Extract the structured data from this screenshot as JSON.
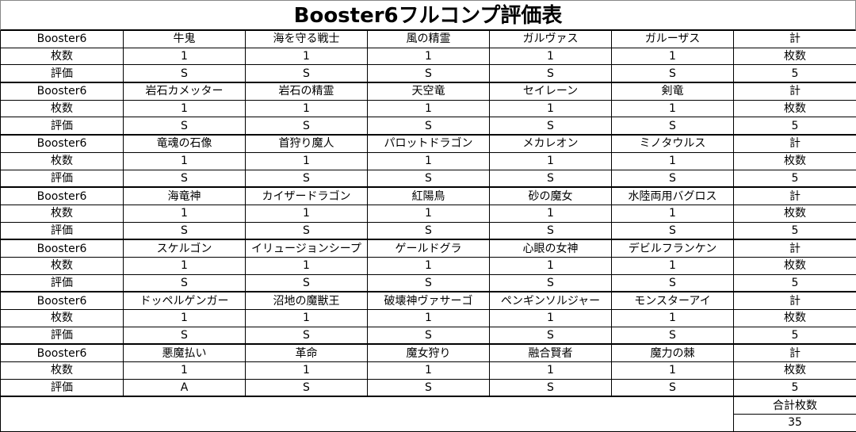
{
  "title": "Booster6フルコンプ評価表",
  "labels": {
    "booster": "Booster6",
    "count": "枚数",
    "rating": "評価",
    "total": "計",
    "grand_total_label": "合計枚数"
  },
  "groups": [
    {
      "cards": [
        "牛鬼",
        "海を守る戦士",
        "風の精霊",
        "ガルヴァス",
        "ガルーザス"
      ],
      "counts": [
        "1",
        "1",
        "1",
        "1",
        "1"
      ],
      "ratings": [
        "S",
        "S",
        "S",
        "S",
        "S"
      ],
      "total": "5"
    },
    {
      "cards": [
        "岩石カメッター",
        "岩石の精霊",
        "天空竜",
        "セイレーン",
        "剣竜"
      ],
      "counts": [
        "1",
        "1",
        "1",
        "1",
        "1"
      ],
      "ratings": [
        "S",
        "S",
        "S",
        "S",
        "S"
      ],
      "total": "5"
    },
    {
      "cards": [
        "竜魂の石像",
        "首狩り魔人",
        "パロットドラゴン",
        "メカレオン",
        "ミノタウルス"
      ],
      "counts": [
        "1",
        "1",
        "1",
        "1",
        "1"
      ],
      "ratings": [
        "S",
        "S",
        "S",
        "S",
        "S"
      ],
      "total": "5"
    },
    {
      "cards": [
        "海竜神",
        "カイザードラゴン",
        "紅陽鳥",
        "砂の魔女",
        "水陸両用バグロス"
      ],
      "counts": [
        "1",
        "1",
        "1",
        "1",
        "1"
      ],
      "ratings": [
        "S",
        "S",
        "S",
        "S",
        "S"
      ],
      "total": "5"
    },
    {
      "cards": [
        "スケルゴン",
        "イリュージョンシープ",
        "ゲールドグラ",
        "心眼の女神",
        "デビルフランケン"
      ],
      "counts": [
        "1",
        "1",
        "1",
        "1",
        "1"
      ],
      "ratings": [
        "S",
        "S",
        "S",
        "S",
        "S"
      ],
      "total": "5"
    },
    {
      "cards": [
        "ドッペルゲンガー",
        "沼地の魔獣王",
        "破壊神ヴァサーゴ",
        "ペンギンソルジャー",
        "モンスターアイ"
      ],
      "counts": [
        "1",
        "1",
        "1",
        "1",
        "1"
      ],
      "ratings": [
        "S",
        "S",
        "S",
        "S",
        "S"
      ],
      "total": "5"
    },
    {
      "cards": [
        "悪魔払い",
        "革命",
        "魔女狩り",
        "融合賢者",
        "魔力の棘"
      ],
      "counts": [
        "1",
        "1",
        "1",
        "1",
        "1"
      ],
      "ratings": [
        "A",
        "S",
        "S",
        "S",
        "S"
      ],
      "total": "5"
    }
  ],
  "grand_total": "35"
}
